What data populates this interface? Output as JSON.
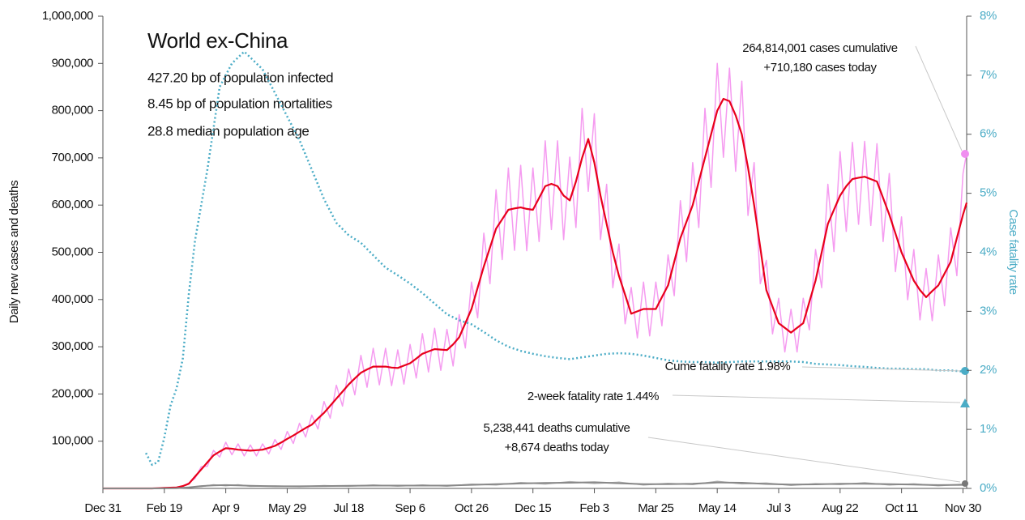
{
  "chart_data": {
    "type": "line",
    "title": "World ex-China",
    "subtitles": [
      "427.20 bp of population infected",
      "8.45 bp of population mortalities",
      "28.8 median population age"
    ],
    "ylabel": "Daily new cases and deaths",
    "y2label": "Case fatality rate",
    "annotations": [
      "264,814,001 cases cumulative",
      "+710,180 cases today",
      "Cume fatality rate 1.98%",
      "2-week fatality rate 1.44%",
      "5,238,441 deaths cumulative",
      "+8,674 deaths today"
    ],
    "xlim": [
      0,
      703
    ],
    "xticks": [
      {
        "value": 0,
        "label": "Dec 31"
      },
      {
        "value": 50,
        "label": "Feb 19"
      },
      {
        "value": 100,
        "label": "Apr 9"
      },
      {
        "value": 150,
        "label": "May 29"
      },
      {
        "value": 200,
        "label": "Jul 18"
      },
      {
        "value": 250,
        "label": "Sep 6"
      },
      {
        "value": 300,
        "label": "Oct 26"
      },
      {
        "value": 350,
        "label": "Dec 15"
      },
      {
        "value": 400,
        "label": "Feb 3"
      },
      {
        "value": 450,
        "label": "Mar 25"
      },
      {
        "value": 500,
        "label": "May 14"
      },
      {
        "value": 550,
        "label": "Jul 3"
      },
      {
        "value": 600,
        "label": "Aug 22"
      },
      {
        "value": 650,
        "label": "Oct 11"
      },
      {
        "value": 700,
        "label": "Nov 30"
      }
    ],
    "ylim": [
      0,
      1000000
    ],
    "yticks": [
      {
        "value": 100000,
        "label": "100,000"
      },
      {
        "value": 200000,
        "label": "200,000"
      },
      {
        "value": 300000,
        "label": "300,000"
      },
      {
        "value": 400000,
        "label": "400,000"
      },
      {
        "value": 500000,
        "label": "500,000"
      },
      {
        "value": 600000,
        "label": "600,000"
      },
      {
        "value": 700000,
        "label": "700,000"
      },
      {
        "value": 800000,
        "label": "800,000"
      },
      {
        "value": 900000,
        "label": "900,000"
      },
      {
        "value": 1000000,
        "label": "1,000,000"
      }
    ],
    "y2lim": [
      0,
      8
    ],
    "y2ticks": [
      {
        "value": 0,
        "label": "0%"
      },
      {
        "value": 1,
        "label": "1%"
      },
      {
        "value": 2,
        "label": "2%"
      },
      {
        "value": 3,
        "label": "3%"
      },
      {
        "value": 4,
        "label": "4%"
      },
      {
        "value": 5,
        "label": "5%"
      },
      {
        "value": 6,
        "label": "6%"
      },
      {
        "value": 7,
        "label": "7%"
      },
      {
        "value": 8,
        "label": "8%"
      }
    ],
    "x": [
      0,
      5,
      10,
      15,
      20,
      25,
      30,
      35,
      40,
      45,
      50,
      55,
      60,
      65,
      70,
      75,
      80,
      85,
      90,
      95,
      100,
      105,
      110,
      115,
      120,
      125,
      130,
      135,
      140,
      145,
      150,
      155,
      160,
      165,
      170,
      175,
      180,
      185,
      190,
      195,
      200,
      205,
      210,
      215,
      220,
      225,
      230,
      235,
      240,
      245,
      250,
      255,
      260,
      265,
      270,
      275,
      280,
      285,
      290,
      295,
      300,
      305,
      310,
      315,
      320,
      325,
      330,
      335,
      340,
      345,
      350,
      355,
      360,
      365,
      370,
      375,
      380,
      385,
      390,
      395,
      400,
      405,
      410,
      415,
      420,
      425,
      430,
      435,
      440,
      445,
      450,
      455,
      460,
      465,
      470,
      475,
      480,
      485,
      490,
      495,
      500,
      505,
      510,
      515,
      520,
      525,
      530,
      535,
      540,
      545,
      550,
      555,
      560,
      565,
      570,
      575,
      580,
      585,
      590,
      595,
      600,
      605,
      610,
      615,
      620,
      625,
      630,
      635,
      640,
      645,
      650,
      655,
      660,
      665,
      670,
      675,
      680,
      685,
      690,
      695,
      700,
      703
    ],
    "series": [
      {
        "color": "#f59bf0",
        "width": 1.5,
        "values": [
          0,
          0,
          0,
          0,
          0,
          0,
          0,
          0,
          0,
          425,
          1150,
          1275,
          2300,
          4250,
          11500,
          21250,
          46000,
          46750,
          80500,
          66300,
          97750,
          71400,
          94300,
          68850,
          92000,
          68850,
          94300,
          73100,
          103500,
          82450,
          120750,
          95200,
          138000,
          108800,
          155250,
          125800,
          184000,
          148750,
          218500,
          174250,
          253000,
          198050,
          281750,
          214200,
          296700,
          219300,
          296700,
          217600,
          293250,
          221000,
          304750,
          233750,
          327750,
          246500,
          339250,
          249900,
          336950,
          259250,
          368000,
          297500,
          437000,
          361250,
          540500,
          433500,
          632500,
          484500,
          678500,
          504050,
          684250,
          503200,
          678500,
          522750,
          736000,
          548250,
          736000,
          527000,
          701500,
          552500,
          805000,
          629000,
          793500,
          527000,
          644000,
          425000,
          517500,
          348500,
          425500,
          318750,
          437000,
          323000,
          437000,
          344250,
          494500,
          408000,
          609500,
          480250,
          690000,
          552500,
          805000,
          637500,
          900000,
          701250,
          890000,
          671500,
          862500,
          578000,
          690000,
          433500,
          483000,
          327250,
          402500,
          289000,
          379500,
          289000,
          402500,
          335750,
          506000,
          425000,
          644000,
          501500,
          713000,
          544000,
          733000,
          559300,
          735000,
          556750,
          730000,
          522750,
          667000,
          459000,
          575000,
          399500,
          506000,
          357000,
          465750,
          355300,
          494500,
          386750,
          552000,
          450500,
          667000,
          710180
        ]
      },
      {
        "color": "#e8001c",
        "width": 2.2,
        "values": [
          0,
          0,
          0,
          0,
          0,
          0,
          0,
          0,
          0,
          500,
          1000,
          1500,
          2000,
          5000,
          10000,
          25000,
          40000,
          55000,
          70000,
          78000,
          85000,
          84000,
          82000,
          81000,
          80000,
          81000,
          82000,
          86000,
          90000,
          97000,
          105000,
          112000,
          120000,
          128000,
          135000,
          148000,
          160000,
          175000,
          190000,
          205000,
          220000,
          233000,
          245000,
          252000,
          258000,
          258000,
          258000,
          256000,
          255000,
          260000,
          265000,
          275000,
          285000,
          290000,
          295000,
          294000,
          293000,
          305000,
          320000,
          350000,
          380000,
          425000,
          470000,
          510000,
          550000,
          570000,
          590000,
          593000,
          595000,
          592000,
          590000,
          615000,
          640000,
          645000,
          640000,
          620000,
          610000,
          650000,
          700000,
          740000,
          690000,
          620000,
          560000,
          500000,
          450000,
          410000,
          370000,
          375000,
          380000,
          380000,
          380000,
          405000,
          430000,
          480000,
          530000,
          565000,
          600000,
          650000,
          700000,
          750000,
          800000,
          825000,
          820000,
          790000,
          750000,
          680000,
          600000,
          510000,
          420000,
          385000,
          350000,
          340000,
          330000,
          340000,
          350000,
          395000,
          440000,
          500000,
          560000,
          590000,
          620000,
          640000,
          655000,
          658000,
          660000,
          655000,
          650000,
          615000,
          580000,
          540000,
          500000,
          470000,
          440000,
          420000,
          405000,
          418000,
          430000,
          455000,
          480000,
          530000,
          580000,
          605000
        ]
      },
      {
        "color": "#b0b0b0",
        "width": 1.5,
        "x": [
          0,
          20,
          40,
          60,
          70,
          80,
          90,
          100,
          110,
          120,
          140,
          160,
          180,
          200,
          220,
          240,
          260,
          280,
          300,
          320,
          340,
          360,
          380,
          400,
          420,
          440,
          460,
          480,
          500,
          520,
          540,
          560,
          580,
          600,
          620,
          640,
          660,
          680,
          700,
          703
        ],
        "values": [
          0,
          0,
          0,
          400,
          2400,
          4000,
          7800,
          5600,
          7800,
          4400,
          5400,
          3600,
          6000,
          4400,
          7200,
          4800,
          7200,
          4800,
          9000,
          7200,
          12600,
          9200,
          14400,
          10400,
          13200,
          7200,
          10800,
          8000,
          15000,
          9600,
          11400,
          6400,
          10200,
          8000,
          12000,
          7200,
          9600,
          5600,
          9000,
          8674
        ]
      },
      {
        "color": "#888888",
        "width": 2,
        "x": [
          0,
          20,
          40,
          60,
          70,
          80,
          90,
          100,
          110,
          120,
          140,
          160,
          180,
          200,
          220,
          240,
          260,
          280,
          300,
          320,
          340,
          360,
          380,
          400,
          420,
          440,
          460,
          480,
          500,
          520,
          540,
          560,
          580,
          600,
          620,
          640,
          660,
          680,
          700,
          703
        ],
        "values": [
          0,
          0,
          0,
          500,
          2000,
          5000,
          6500,
          7000,
          6500,
          5500,
          4500,
          4500,
          5000,
          5500,
          6000,
          6000,
          6000,
          6000,
          7500,
          9000,
          10500,
          11500,
          12000,
          13000,
          11000,
          9000,
          9000,
          10000,
          12500,
          12000,
          9500,
          8000,
          8500,
          10000,
          10000,
          9000,
          8000,
          7000,
          7500,
          7800
        ]
      },
      {
        "color": "#4bacc6",
        "width": 2.5,
        "dash": "2,3",
        "axis": "y2",
        "x": [
          35,
          40,
          45,
          50,
          55,
          60,
          65,
          70,
          75,
          80,
          85,
          90,
          95,
          100,
          105,
          110,
          115,
          120,
          125,
          130,
          135,
          140,
          150,
          160,
          170,
          180,
          190,
          200,
          210,
          220,
          230,
          240,
          250,
          260,
          270,
          280,
          290,
          300,
          310,
          320,
          330,
          340,
          350,
          360,
          370,
          380,
          390,
          400,
          410,
          420,
          430,
          440,
          450,
          460,
          470,
          480,
          490,
          500,
          510,
          520,
          530,
          540,
          550,
          560,
          570,
          580,
          590,
          600,
          610,
          620,
          630,
          640,
          650,
          660,
          670,
          680,
          690,
          700
        ],
        "values": [
          0.6,
          0.4,
          0.45,
          0.86,
          1.4,
          1.7,
          2.2,
          3.3,
          4.2,
          4.8,
          5.4,
          6.1,
          6.8,
          7.0,
          7.2,
          7.3,
          7.4,
          7.3,
          7.2,
          7.1,
          6.9,
          6.7,
          6.3,
          5.9,
          5.4,
          4.9,
          4.5,
          4.29,
          4.16,
          3.95,
          3.74,
          3.61,
          3.47,
          3.31,
          3.13,
          2.95,
          2.85,
          2.78,
          2.65,
          2.51,
          2.4,
          2.33,
          2.28,
          2.24,
          2.21,
          2.19,
          2.22,
          2.25,
          2.28,
          2.29,
          2.28,
          2.25,
          2.21,
          2.17,
          2.15,
          2.14,
          2.14,
          2.13,
          2.14,
          2.15,
          2.15,
          2.15,
          2.15,
          2.15,
          2.14,
          2.11,
          2.1,
          2.09,
          2.07,
          2.06,
          2.04,
          2.03,
          2.03,
          2.02,
          2.02,
          2.0,
          2.0,
          1.98
        ]
      }
    ]
  }
}
